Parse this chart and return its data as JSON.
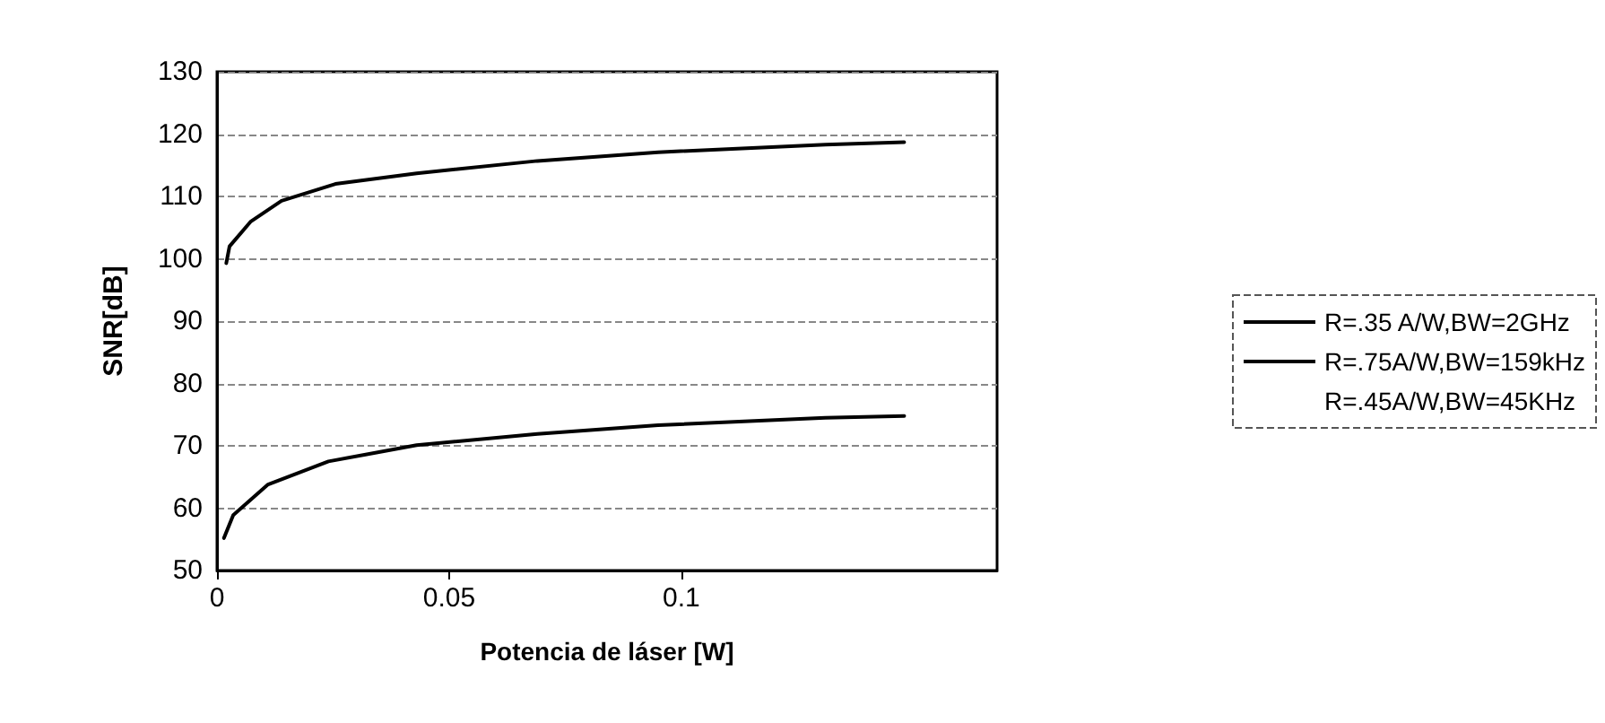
{
  "chart_data": {
    "type": "line",
    "xlabel": "Potencia de láser [W]",
    "ylabel": "SNR[dB]",
    "xlim": [
      0,
      0.168
    ],
    "xticks": [
      0,
      0.05,
      0.1
    ],
    "ylim": [
      50,
      130
    ],
    "yticks": [
      50,
      60,
      70,
      80,
      90,
      100,
      110,
      120,
      130
    ],
    "grid": "y",
    "legend": "right",
    "marker": "none",
    "line_style": "solid",
    "series": [
      {
        "name": "R=.35 A/W,BW=2GHz",
        "color": "#000000",
        "x": [
          0.002,
          0.0027,
          0.0073,
          0.0139,
          0.0255,
          0.043,
          0.069,
          0.095,
          0.131,
          0.148
        ],
        "values": [
          99.3,
          102,
          106,
          109.3,
          112,
          113.7,
          115.7,
          117.1,
          118.3,
          118.7
        ]
      },
      {
        "name": "R=.75A/W,BW=159kHz",
        "color": "#000000",
        "x": [
          0.0015,
          0.0035,
          0.011,
          0.024,
          0.043,
          0.069,
          0.095,
          0.131,
          0.148
        ],
        "values": [
          55.2,
          58.9,
          63.8,
          67.5,
          70.1,
          71.9,
          73.3,
          74.5,
          74.8
        ]
      },
      {
        "name": "R=.45A/W,BW=45KHz"
      }
    ]
  }
}
